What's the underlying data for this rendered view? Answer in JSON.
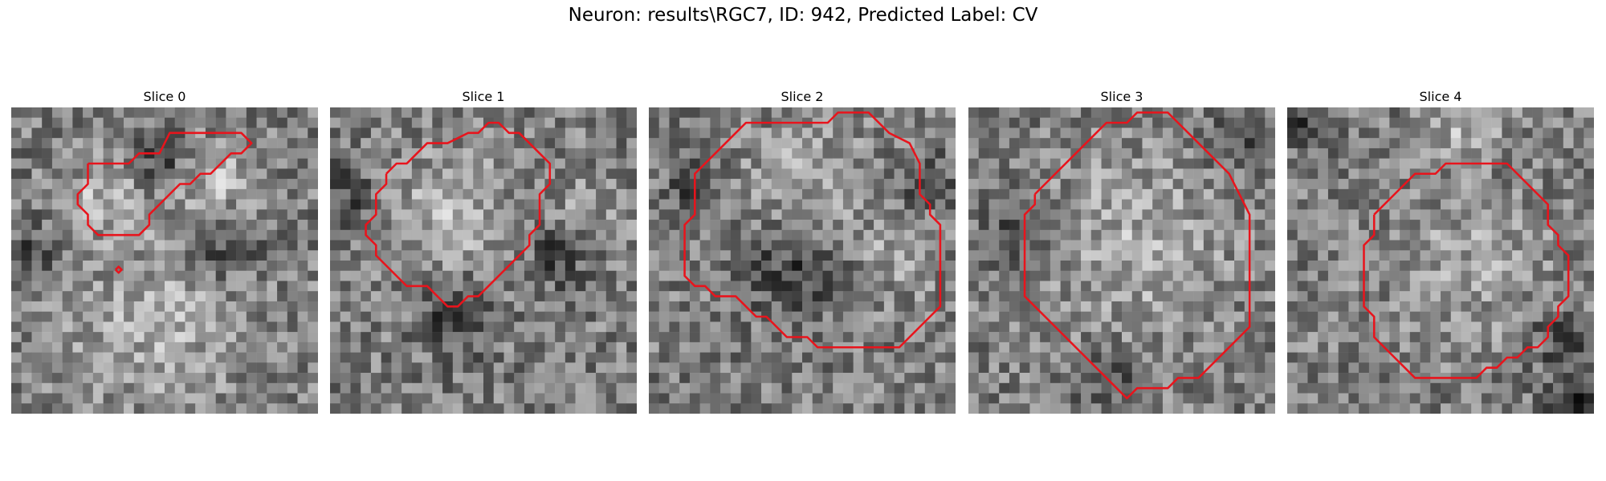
{
  "figure": {
    "title": "Neuron: results\\RGC7, ID: 942, Predicted Label: CV"
  },
  "colors": {
    "contour": "#e8141c",
    "background": "#ffffff"
  },
  "grid_size": 30,
  "panels": [
    {
      "title": "Slice 0",
      "seed": 11,
      "contours": [
        [
          [
            7,
            5
          ],
          [
            11,
            5
          ],
          [
            12,
            4
          ],
          [
            14,
            4
          ],
          [
            15,
            2
          ],
          [
            22,
            2
          ],
          [
            23,
            3
          ],
          [
            22,
            4
          ],
          [
            21,
            4
          ],
          [
            19,
            6
          ],
          [
            18,
            6
          ],
          [
            17,
            7
          ],
          [
            16,
            7
          ],
          [
            14,
            9
          ],
          [
            13,
            10
          ],
          [
            13,
            11
          ],
          [
            12,
            12
          ],
          [
            8,
            12
          ],
          [
            7,
            11
          ],
          [
            7,
            10
          ],
          [
            6,
            9
          ],
          [
            6,
            8
          ],
          [
            7,
            7
          ],
          [
            7,
            6
          ],
          [
            7,
            5
          ]
        ],
        [
          [
            9.7,
            15.4
          ],
          [
            10,
            15.1
          ],
          [
            10.3,
            15.4
          ],
          [
            10,
            15.7
          ],
          [
            9.7,
            15.4
          ]
        ]
      ],
      "bright": [
        {
          "cx": 9,
          "cy": 8,
          "r": 4,
          "amp": 55
        },
        {
          "cx": 19,
          "cy": 7,
          "r": 4,
          "amp": 55
        },
        {
          "cx": 14,
          "cy": 21,
          "r": 9,
          "amp": 45
        }
      ],
      "dark": [
        {
          "cx": 14,
          "cy": 5,
          "r": 3,
          "amp": 70
        },
        {
          "cx": 20,
          "cy": 13,
          "r": 3.5,
          "amp": 65
        },
        {
          "cx": 2,
          "cy": 14,
          "r": 3,
          "amp": 55
        }
      ]
    },
    {
      "title": "Slice 1",
      "seed": 23,
      "contours": [
        [
          [
            5,
            6
          ],
          [
            6,
            5
          ],
          [
            7,
            5
          ],
          [
            9,
            3
          ],
          [
            11,
            3
          ],
          [
            13,
            2
          ],
          [
            14,
            2
          ],
          [
            15,
            1
          ],
          [
            16,
            1
          ],
          [
            17,
            2
          ],
          [
            18,
            2
          ],
          [
            19,
            3
          ],
          [
            20,
            4
          ],
          [
            21,
            5
          ],
          [
            21,
            7
          ],
          [
            20,
            8
          ],
          [
            20,
            11
          ],
          [
            19,
            12
          ],
          [
            19,
            13
          ],
          [
            18,
            14
          ],
          [
            17,
            15
          ],
          [
            16,
            16
          ],
          [
            15,
            17
          ],
          [
            14,
            18
          ],
          [
            13,
            18
          ],
          [
            12,
            19
          ],
          [
            11,
            19
          ],
          [
            10,
            18
          ],
          [
            9,
            17
          ],
          [
            7,
            17
          ],
          [
            6,
            16
          ],
          [
            5,
            15
          ],
          [
            4,
            14
          ],
          [
            4,
            13
          ],
          [
            3,
            12
          ],
          [
            3,
            11
          ],
          [
            4,
            10
          ],
          [
            4,
            8
          ],
          [
            5,
            7
          ],
          [
            5,
            6
          ]
        ]
      ],
      "bright": [
        {
          "cx": 11,
          "cy": 10,
          "r": 6,
          "amp": 55
        },
        {
          "cx": 25,
          "cy": 10,
          "r": 4,
          "amp": 30
        }
      ],
      "dark": [
        {
          "cx": 12,
          "cy": 20,
          "r": 3.5,
          "amp": 70
        },
        {
          "cx": 22,
          "cy": 14,
          "r": 3,
          "amp": 60
        },
        {
          "cx": 1,
          "cy": 8,
          "r": 3,
          "amp": 55
        }
      ]
    },
    {
      "title": "Slice 2",
      "seed": 37,
      "contours": [
        [
          [
            4,
            8
          ],
          [
            4,
            6
          ],
          [
            5,
            5
          ],
          [
            6,
            4
          ],
          [
            7,
            3
          ],
          [
            8,
            2
          ],
          [
            9,
            1
          ],
          [
            10,
            1
          ],
          [
            11,
            1
          ],
          [
            13,
            1
          ],
          [
            14,
            1
          ],
          [
            17,
            1
          ],
          [
            18,
            0
          ],
          [
            21,
            0
          ],
          [
            22,
            1
          ],
          [
            23,
            2
          ],
          [
            25,
            3
          ],
          [
            26,
            5
          ],
          [
            26,
            8
          ],
          [
            27,
            9
          ],
          [
            27,
            10
          ],
          [
            28,
            11
          ],
          [
            28,
            19
          ],
          [
            27,
            20
          ],
          [
            26,
            21
          ],
          [
            25,
            22
          ],
          [
            24,
            23
          ],
          [
            16,
            23
          ],
          [
            15,
            22
          ],
          [
            13,
            22
          ],
          [
            11,
            20
          ],
          [
            10,
            20
          ],
          [
            8,
            18
          ],
          [
            6,
            18
          ],
          [
            5,
            17
          ],
          [
            4,
            17
          ],
          [
            3,
            16
          ],
          [
            3,
            14
          ],
          [
            3,
            11
          ],
          [
            4,
            10
          ],
          [
            4,
            8
          ]
        ]
      ],
      "bright": [
        {
          "cx": 15,
          "cy": 7,
          "r": 6,
          "amp": 45
        },
        {
          "cx": 24,
          "cy": 14,
          "r": 4,
          "amp": 40
        }
      ],
      "dark": [
        {
          "cx": 14,
          "cy": 15,
          "r": 5,
          "amp": 60
        },
        {
          "cx": 4,
          "cy": 8,
          "r": 3,
          "amp": 50
        },
        {
          "cx": 27,
          "cy": 7,
          "r": 3,
          "amp": 50
        }
      ]
    },
    {
      "title": "Slice 3",
      "seed": 53,
      "contours": [
        [
          [
            6,
            8
          ],
          [
            8,
            6
          ],
          [
            10,
            4
          ],
          [
            12,
            2
          ],
          [
            13,
            1
          ],
          [
            15,
            1
          ],
          [
            16,
            0
          ],
          [
            19,
            0
          ],
          [
            20,
            1
          ],
          [
            21,
            2
          ],
          [
            23,
            4
          ],
          [
            24,
            5
          ],
          [
            25,
            6
          ],
          [
            26,
            8
          ],
          [
            27,
            10
          ],
          [
            27,
            21
          ],
          [
            26,
            22
          ],
          [
            25,
            23
          ],
          [
            24,
            24
          ],
          [
            23,
            25
          ],
          [
            22,
            26
          ],
          [
            20,
            26
          ],
          [
            19,
            27
          ],
          [
            16,
            27
          ],
          [
            15,
            28
          ],
          [
            14,
            27
          ],
          [
            13,
            26
          ],
          [
            12,
            25
          ],
          [
            11,
            24
          ],
          [
            10,
            23
          ],
          [
            9,
            22
          ],
          [
            8,
            21
          ],
          [
            7,
            20
          ],
          [
            6,
            19
          ],
          [
            5,
            18
          ],
          [
            5,
            16
          ],
          [
            5,
            10
          ],
          [
            6,
            9
          ],
          [
            6,
            8
          ]
        ]
      ],
      "bright": [
        {
          "cx": 16,
          "cy": 13,
          "r": 9,
          "amp": 45
        }
      ],
      "dark": [
        {
          "cx": 4,
          "cy": 12,
          "r": 3,
          "amp": 60
        },
        {
          "cx": 13,
          "cy": 26,
          "r": 3,
          "amp": 55
        },
        {
          "cx": 26,
          "cy": 3,
          "r": 3,
          "amp": 50
        }
      ]
    },
    {
      "title": "Slice 4",
      "seed": 71,
      "contours": [
        [
          [
            8,
            10
          ],
          [
            10,
            8
          ],
          [
            11,
            7
          ],
          [
            12,
            6
          ],
          [
            14,
            6
          ],
          [
            15,
            5
          ],
          [
            21,
            5
          ],
          [
            22,
            6
          ],
          [
            23,
            7
          ],
          [
            24,
            8
          ],
          [
            25,
            9
          ],
          [
            25,
            11
          ],
          [
            26,
            12
          ],
          [
            26,
            13
          ],
          [
            27,
            14
          ],
          [
            27,
            18
          ],
          [
            26,
            19
          ],
          [
            26,
            20
          ],
          [
            25,
            21
          ],
          [
            25,
            22
          ],
          [
            24,
            23
          ],
          [
            23,
            23
          ],
          [
            22,
            24
          ],
          [
            21,
            24
          ],
          [
            20,
            25
          ],
          [
            19,
            25
          ],
          [
            18,
            26
          ],
          [
            12,
            26
          ],
          [
            11,
            25
          ],
          [
            10,
            24
          ],
          [
            9,
            23
          ],
          [
            8,
            22
          ],
          [
            8,
            20
          ],
          [
            7,
            19
          ],
          [
            7,
            13
          ],
          [
            8,
            12
          ],
          [
            8,
            10
          ]
        ]
      ],
      "bright": [
        {
          "cx": 17,
          "cy": 15,
          "r": 8,
          "amp": 35
        },
        {
          "cx": 17,
          "cy": 1,
          "r": 3,
          "amp": 55
        }
      ],
      "dark": [
        {
          "cx": 29,
          "cy": 29,
          "r": 4,
          "amp": 90
        },
        {
          "cx": 1,
          "cy": 1,
          "r": 2,
          "amp": 50
        },
        {
          "cx": 26,
          "cy": 22,
          "r": 3,
          "amp": 40
        }
      ]
    }
  ]
}
